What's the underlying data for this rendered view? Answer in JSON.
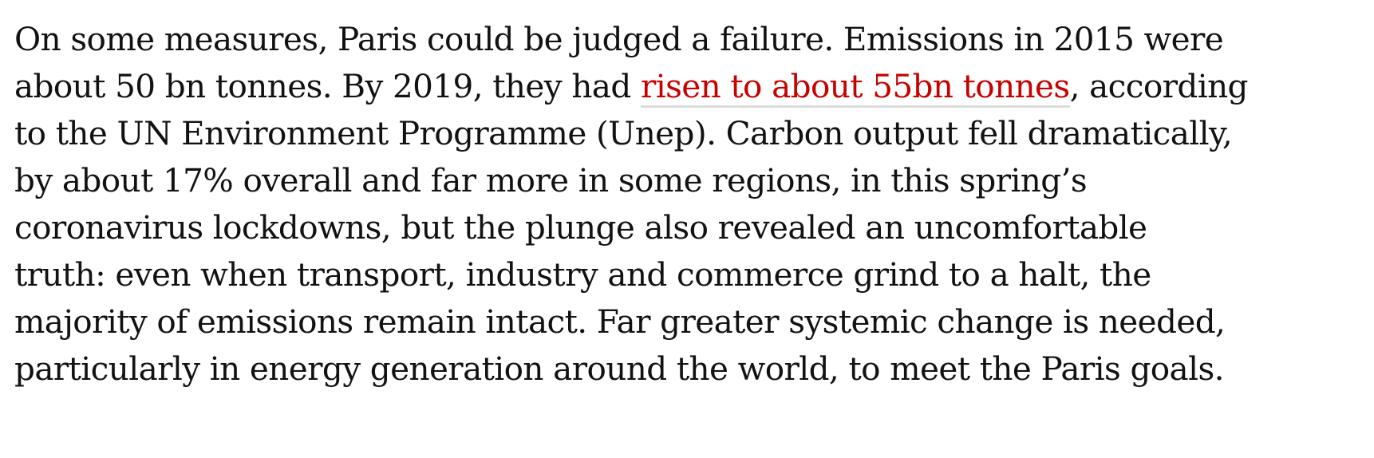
{
  "article": {
    "paragraph": {
      "line1": "On some measures, Paris could be judged a failure. Emissions in 2015 were",
      "line2_before_link": "about 50 bn tonnes. By 2019, they had ",
      "link_text": "risen to about 55bn tonnes",
      "line2_after_link": ", according",
      "line3": "to the UN Environment Programme (Unep). Carbon output fell dramatically,",
      "line4": "by about 17% overall and far more in some regions, in this spring’s",
      "line5": "coronavirus lockdowns, but the plunge also revealed an uncomfortable",
      "line6": "truth: even when transport, industry and commerce grind to a halt, the",
      "line7": "majority of emissions remain intact. Far greater systemic change is needed,",
      "line8": "particularly in energy generation around the world, to meet the Paris goals."
    },
    "colors": {
      "text": "#121212",
      "link": "#c70000",
      "link_underline": "#dcdcdc",
      "background": "#ffffff"
    }
  }
}
